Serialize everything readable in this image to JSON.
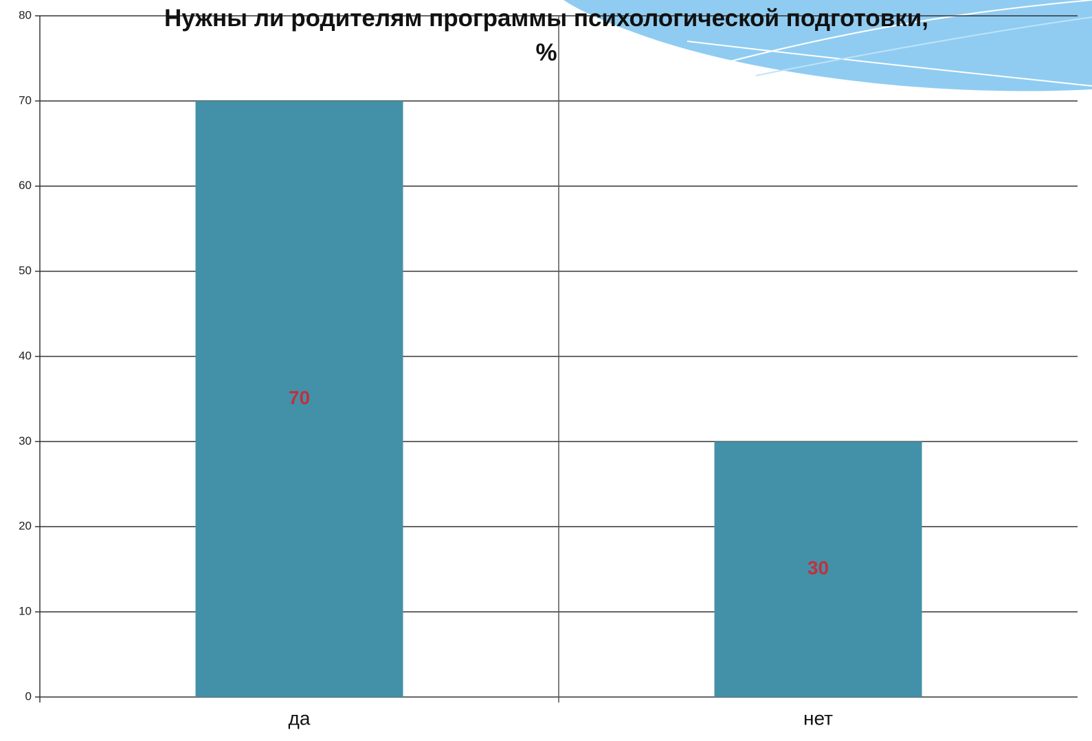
{
  "chart_data": {
    "type": "bar",
    "title": "Нужны ли родителям программы психологической подготовки, %",
    "categories": [
      "да",
      "нет"
    ],
    "values": [
      70,
      30
    ],
    "color": "#4391a8",
    "label_color": "#c0313d",
    "ylim": [
      0,
      80
    ],
    "yticks": [
      0,
      10,
      20,
      30,
      40,
      50,
      60,
      70,
      80
    ],
    "grid": true
  }
}
